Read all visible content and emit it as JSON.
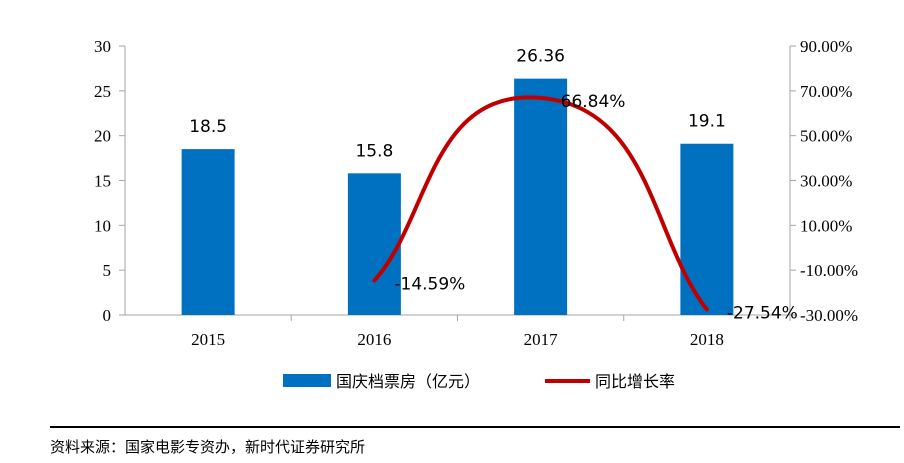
{
  "chart_data": {
    "type": "bar",
    "categories": [
      "2015",
      "2016",
      "2017",
      "2018"
    ],
    "series": [
      {
        "name": "国庆档票房（亿元）",
        "type": "bar",
        "axis": "left",
        "values": [
          18.5,
          15.8,
          26.36,
          19.1
        ],
        "labels": [
          "18.5",
          "15.8",
          "26.36",
          "19.1"
        ],
        "color": "#0070C0"
      },
      {
        "name": "同比增长率",
        "type": "line",
        "axis": "right",
        "values": [
          null,
          -14.59,
          66.84,
          -27.54
        ],
        "labels": [
          "",
          "-14.59%",
          "66.84%",
          "-27.54%"
        ],
        "color": "#C00000",
        "smooth": true
      }
    ],
    "y_left": {
      "ylim": [
        0,
        30
      ],
      "ticks": [
        "0",
        "5",
        "10",
        "15",
        "20",
        "25",
        "30"
      ]
    },
    "y_right": {
      "ylim": [
        -30,
        90
      ],
      "ticks": [
        "-30.00%",
        "-10.00%",
        "10.00%",
        "30.00%",
        "50.00%",
        "70.00%",
        "90.00%"
      ]
    },
    "legend_position": "bottom",
    "grid": false
  },
  "source_note": "资料来源：国家电影专资办，新时代证券研究所"
}
